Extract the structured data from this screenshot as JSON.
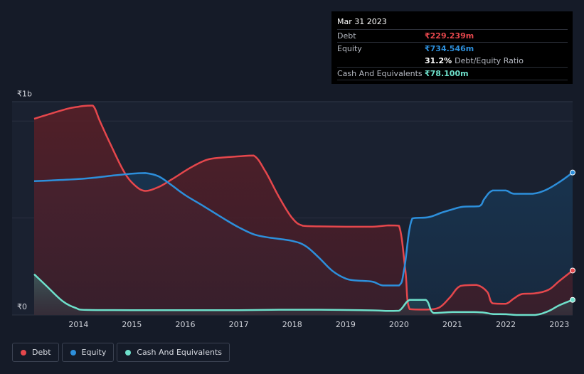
{
  "colors": {
    "background": "#151b28",
    "debt": "#e5474c",
    "equity": "#2d8fdb",
    "cash": "#6ee0cb",
    "grid": "#2a3140",
    "axis_text": "#d0d3da"
  },
  "tooltip": {
    "date": "Mar 31 2023",
    "debt_label": "Debt",
    "debt_value": "₹229.239m",
    "equity_label": "Equity",
    "equity_value": "₹734.546m",
    "ratio_value": "31.2%",
    "ratio_label": "Debt/Equity Ratio",
    "cash_label": "Cash And Equivalents",
    "cash_value": "₹78.100m"
  },
  "legend": {
    "debt": "Debt",
    "equity": "Equity",
    "cash": "Cash And Equivalents"
  },
  "chart_data": {
    "type": "area",
    "title": "",
    "xlabel": "",
    "ylabel": "",
    "x_range": [
      2013.17,
      2023.25
    ],
    "ylim": [
      0,
      1100
    ],
    "y_tick_labels": [
      {
        "value": 1000,
        "label": "₹1b"
      },
      {
        "value": 0,
        "label": "₹0"
      }
    ],
    "x_ticks": [
      "2014",
      "2015",
      "2016",
      "2017",
      "2018",
      "2019",
      "2020",
      "2021",
      "2022",
      "2023"
    ],
    "series": [
      {
        "name": "Debt",
        "color": "#e5474c",
        "points": [
          [
            2013.17,
            1012
          ],
          [
            2013.5,
            1040
          ],
          [
            2013.8,
            1064
          ],
          [
            2014.0,
            1074
          ],
          [
            2014.1,
            1078
          ],
          [
            2014.27,
            1080
          ],
          [
            2014.4,
            1000
          ],
          [
            2014.6,
            880
          ],
          [
            2014.85,
            740
          ],
          [
            2015.05,
            670
          ],
          [
            2015.25,
            640
          ],
          [
            2015.5,
            660
          ],
          [
            2015.75,
            700
          ],
          [
            2016.1,
            760
          ],
          [
            2016.4,
            800
          ],
          [
            2016.7,
            812
          ],
          [
            2017.0,
            818
          ],
          [
            2017.28,
            822
          ],
          [
            2017.5,
            740
          ],
          [
            2017.75,
            610
          ],
          [
            2018.0,
            500
          ],
          [
            2018.2,
            460
          ],
          [
            2018.5,
            457
          ],
          [
            2019.0,
            455
          ],
          [
            2019.5,
            455
          ],
          [
            2019.8,
            462
          ],
          [
            2020.0,
            460
          ],
          [
            2020.12,
            230
          ],
          [
            2020.2,
            30
          ],
          [
            2020.5,
            28
          ],
          [
            2020.75,
            38
          ],
          [
            2020.95,
            90
          ],
          [
            2021.15,
            150
          ],
          [
            2021.45,
            155
          ],
          [
            2021.65,
            120
          ],
          [
            2021.75,
            60
          ],
          [
            2022.0,
            58
          ],
          [
            2022.15,
            85
          ],
          [
            2022.3,
            108
          ],
          [
            2022.55,
            112
          ],
          [
            2022.8,
            130
          ],
          [
            2023.0,
            175
          ],
          [
            2023.25,
            229.239
          ]
        ]
      },
      {
        "name": "Equity",
        "color": "#2d8fdb",
        "points": [
          [
            2013.17,
            690
          ],
          [
            2013.5,
            694
          ],
          [
            2013.8,
            698
          ],
          [
            2014.0,
            701
          ],
          [
            2014.3,
            708
          ],
          [
            2014.6,
            718
          ],
          [
            2015.0,
            729
          ],
          [
            2015.25,
            732
          ],
          [
            2015.5,
            715
          ],
          [
            2015.75,
            668
          ],
          [
            2016.0,
            618
          ],
          [
            2016.35,
            560
          ],
          [
            2016.7,
            500
          ],
          [
            2017.0,
            452
          ],
          [
            2017.3,
            414
          ],
          [
            2017.6,
            398
          ],
          [
            2018.0,
            382
          ],
          [
            2018.25,
            356
          ],
          [
            2018.5,
            296
          ],
          [
            2018.75,
            228
          ],
          [
            2019.0,
            188
          ],
          [
            2019.2,
            178
          ],
          [
            2019.5,
            172
          ],
          [
            2019.7,
            152
          ],
          [
            2020.0,
            152
          ],
          [
            2020.1,
            240
          ],
          [
            2020.25,
            498
          ],
          [
            2020.55,
            504
          ],
          [
            2020.8,
            528
          ],
          [
            2021.0,
            545
          ],
          [
            2021.2,
            558
          ],
          [
            2021.5,
            561
          ],
          [
            2021.6,
            600
          ],
          [
            2021.75,
            642
          ],
          [
            2022.0,
            642
          ],
          [
            2022.15,
            625
          ],
          [
            2022.5,
            625
          ],
          [
            2022.75,
            645
          ],
          [
            2023.0,
            685
          ],
          [
            2023.25,
            734.546
          ]
        ]
      },
      {
        "name": "Cash And Equivalents",
        "color": "#6ee0cb",
        "points": [
          [
            2013.17,
            210
          ],
          [
            2013.4,
            150
          ],
          [
            2013.7,
            72
          ],
          [
            2013.95,
            36
          ],
          [
            2014.15,
            26
          ],
          [
            2015.0,
            25
          ],
          [
            2016.0,
            25
          ],
          [
            2017.0,
            25
          ],
          [
            2017.75,
            27
          ],
          [
            2018.5,
            27
          ],
          [
            2019.5,
            24
          ],
          [
            2019.75,
            21
          ],
          [
            2020.0,
            22
          ],
          [
            2020.2,
            78
          ],
          [
            2020.5,
            78
          ],
          [
            2020.65,
            10
          ],
          [
            2021.0,
            15
          ],
          [
            2021.4,
            15
          ],
          [
            2021.6,
            12
          ],
          [
            2021.75,
            5
          ],
          [
            2022.0,
            4
          ],
          [
            2022.2,
            0
          ],
          [
            2022.55,
            0
          ],
          [
            2022.8,
            20
          ],
          [
            2023.0,
            50
          ],
          [
            2023.25,
            78.1
          ]
        ]
      }
    ]
  }
}
